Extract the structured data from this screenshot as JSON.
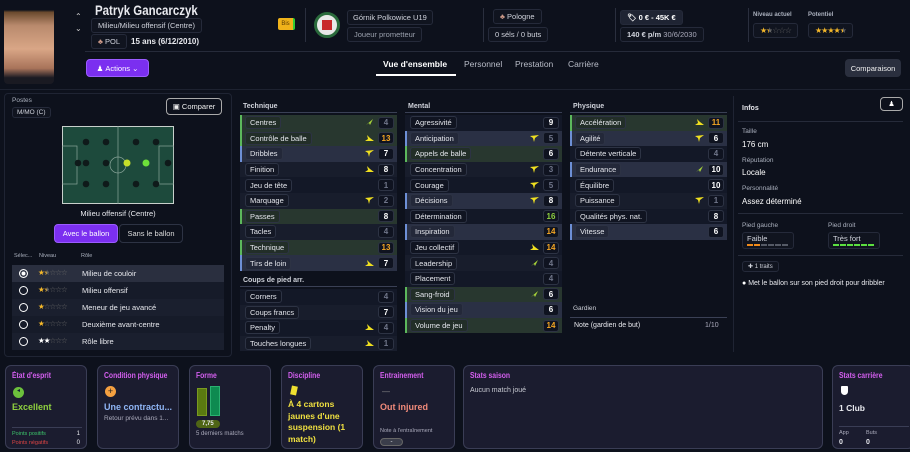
{
  "header": {
    "player_name": "Patryk Gancarczyk",
    "position": "Milieu/Milieu offensif (Centre)",
    "nationality_code": "POL",
    "age": "15 ans (6/12/2010)",
    "squad_badge": "Bis",
    "club": "Górnik Polkowice U19",
    "status": "Joueur prometteur",
    "country": "Pologne",
    "caps": "0 séls / 0 buts",
    "value": "0 € - 45K €",
    "wage": "140 € p/m",
    "contract_end": "30/6/2030",
    "current_ability_label": "Niveau actuel",
    "current_ability_stars": 1.5,
    "potential_label": "Potentiel",
    "potential_stars": 4.5
  },
  "toolbar": {
    "actions": "Actions",
    "comparison": "Comparaison"
  },
  "tabs": [
    {
      "label": "Vue d'ensemble",
      "active": true
    },
    {
      "label": "Personnel"
    },
    {
      "label": "Prestation"
    },
    {
      "label": "Carrière"
    }
  ],
  "positions": {
    "label": "Postes",
    "value": "M/MO (C)",
    "compare": "Comparer",
    "pitch_caption": "Milieu offensif (Centre)",
    "with_ball": "Avec le ballon",
    "without_ball": "Sans le ballon",
    "col_select": "Sélec...",
    "col_level": "Niveau",
    "col_role": "Rôle",
    "roles": [
      {
        "name": "Milieu de couloir",
        "stars": 1.5,
        "selected": true
      },
      {
        "name": "Milieu offensif",
        "stars": 1.5
      },
      {
        "name": "Meneur de jeu avancé",
        "stars": 1
      },
      {
        "name": "Deuxième avant-centre",
        "stars": 1
      },
      {
        "name": "Rôle libre",
        "stars": 2,
        "white": true
      }
    ]
  },
  "attributes": {
    "technique": {
      "title": "Technique",
      "rows": [
        [
          "Centres",
          4,
          "g",
          "up"
        ],
        [
          "Contrôle de balle",
          13,
          "g",
          "down"
        ],
        [
          "Dribbles",
          7,
          "b",
          "side"
        ],
        [
          "Finition",
          8,
          "",
          "down"
        ],
        [
          "Jeu de tête",
          1,
          "",
          ""
        ],
        [
          "Marquage",
          2,
          "",
          "side"
        ],
        [
          "Passes",
          8,
          "g",
          ""
        ],
        [
          "Tacles",
          4,
          "",
          ""
        ],
        [
          "Technique",
          13,
          "g",
          ""
        ],
        [
          "Tirs de loin",
          7,
          "b",
          "down"
        ]
      ]
    },
    "set_pieces": {
      "title": "Coups de pied arr.",
      "rows": [
        [
          "Corners",
          4,
          "",
          ""
        ],
        [
          "Coups francs",
          7,
          "",
          ""
        ],
        [
          "Penalty",
          4,
          "",
          "down"
        ],
        [
          "Touches longues",
          1,
          "",
          "down"
        ]
      ]
    },
    "mental": {
      "title": "Mental",
      "rows": [
        [
          "Agressivité",
          9,
          "",
          ""
        ],
        [
          "Anticipation",
          5,
          "b",
          "side"
        ],
        [
          "Appels de balle",
          6,
          "g",
          ""
        ],
        [
          "Concentration",
          3,
          "",
          "side"
        ],
        [
          "Courage",
          5,
          "",
          "side"
        ],
        [
          "Décisions",
          8,
          "b",
          "side"
        ],
        [
          "Détermination",
          16,
          "",
          ""
        ],
        [
          "Inspiration",
          14,
          "b",
          ""
        ],
        [
          "Jeu collectif",
          14,
          "",
          "down"
        ],
        [
          "Leadership",
          4,
          "",
          "up"
        ],
        [
          "Placement",
          4,
          "",
          ""
        ],
        [
          "Sang-froid",
          6,
          "g",
          "up"
        ],
        [
          "Vision du jeu",
          6,
          "b",
          ""
        ],
        [
          "Volume de jeu",
          14,
          "g",
          ""
        ]
      ]
    },
    "physique": {
      "title": "Physique",
      "rows": [
        [
          "Accélération",
          11,
          "g",
          "down"
        ],
        [
          "Agilité",
          6,
          "b",
          "side"
        ],
        [
          "Détente verticale",
          4,
          "",
          ""
        ],
        [
          "Endurance",
          10,
          "b",
          "up"
        ],
        [
          "Équilibre",
          10,
          "",
          ""
        ],
        [
          "Puissance",
          1,
          "",
          "side"
        ],
        [
          "Qualités phys. nat.",
          8,
          "",
          ""
        ],
        [
          "Vitesse",
          6,
          "b",
          ""
        ]
      ]
    },
    "goalkeeper": {
      "title": "Gardien",
      "note_label": "Note (gardien de but)",
      "note_value": "1/10"
    }
  },
  "info": {
    "title": "Infos",
    "height_label": "Taille",
    "height": "176 cm",
    "reputation_label": "Réputation",
    "reputation": "Locale",
    "personality_label": "Personnalité",
    "personality": "Assez déterminé",
    "left_foot_label": "Pied gauche",
    "left_foot": "Faible",
    "left_foot_level": 2,
    "right_foot_label": "Pied droit",
    "right_foot": "Très fort",
    "right_foot_level": 6,
    "traits_count": "1 traits",
    "trait": "Met le ballon sur son pied droit pour dribbler"
  },
  "cards": {
    "morale": {
      "title": "État d'esprit",
      "value": "Excellent",
      "pos_label": "Points positifs",
      "pos": "1",
      "neg_label": "Points négatifs",
      "neg": "0"
    },
    "condition": {
      "title": "Condition physique",
      "value": "Une contractu...",
      "sub": "Retour prévu dans 1..."
    },
    "form": {
      "title": "Forme",
      "rating": "7,75",
      "sub": "5 derniers matchs"
    },
    "discipline": {
      "title": "Discipline",
      "value": "À 4 cartons jaunes d'une suspension (1 match)"
    },
    "training": {
      "title": "Entrainement",
      "dash": "—",
      "value": "Out injured",
      "rating_label": "Note à l'entraînement",
      "rating": "-"
    },
    "season": {
      "title": "Stats saison",
      "value": "Aucun match joué"
    },
    "career": {
      "title": "Stats carrière",
      "clubs": "1 Club",
      "apps_label": "App",
      "apps": "0",
      "goals_label": "Buts",
      "goals": "0"
    }
  },
  "colors": {
    "accent": "#7b2ff0",
    "card_title": "#d55ff0",
    "good": "#8fd13f",
    "orange": "#f5a623"
  }
}
